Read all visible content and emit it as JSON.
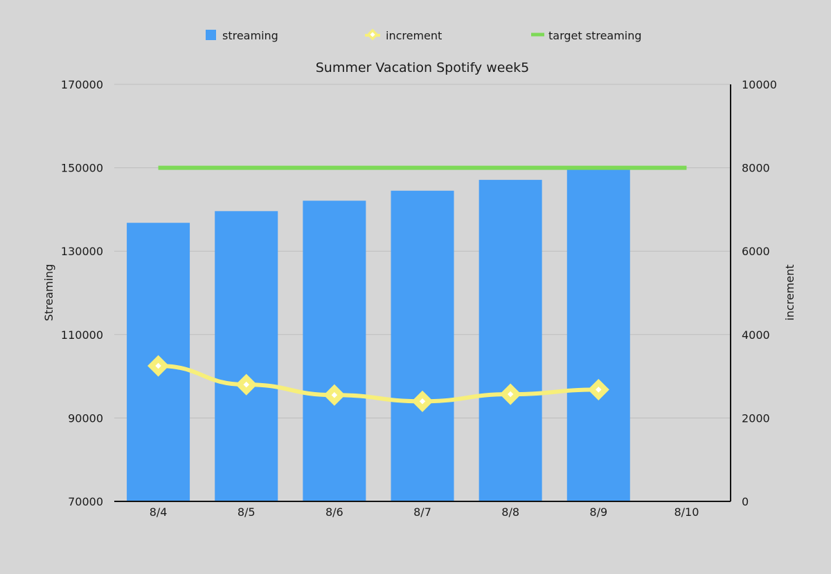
{
  "chart_data": {
    "type": "bar",
    "title": "Summer Vacation Spotify week5",
    "categories": [
      "8/4",
      "8/5",
      "8/6",
      "8/7",
      "8/8",
      "8/9",
      "8/10"
    ],
    "series": [
      {
        "name": "streaming",
        "kind": "bar",
        "axis": "left",
        "color": "#479ef5",
        "values": [
          136800,
          139600,
          142100,
          144500,
          147100,
          150000,
          null
        ]
      },
      {
        "name": "increment",
        "kind": "line",
        "axis": "right",
        "color": "#f7ef7a",
        "values": [
          3250,
          2800,
          2550,
          2400,
          2570,
          2680,
          null
        ]
      },
      {
        "name": "target streaming",
        "kind": "line",
        "axis": "left",
        "color": "#7ed957",
        "values": [
          150000,
          150000,
          150000,
          150000,
          150000,
          150000,
          150000
        ]
      }
    ],
    "ylabel": "Streaming",
    "ylabel_right": "increment",
    "ylim": [
      70000,
      170000
    ],
    "y_ticks": [
      "70000",
      "90000",
      "110000",
      "130000",
      "150000",
      "170000"
    ],
    "ylim_right": [
      0,
      10000
    ],
    "y_ticks_right": [
      "0",
      "2000",
      "4000",
      "6000",
      "8000",
      "10000"
    ],
    "grid": true,
    "legend_position": "top-center"
  }
}
